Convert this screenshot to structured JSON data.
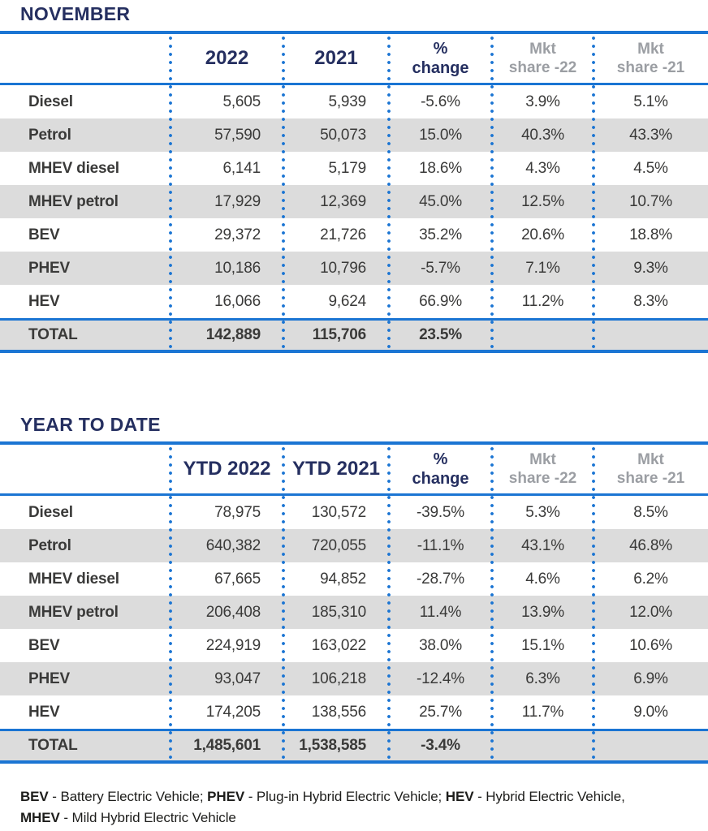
{
  "colors": {
    "navy": "#252F60",
    "rule_blue": "#1B75D3",
    "stripe_gray": "#DCDCDC",
    "body_text": "#3A3A39",
    "muted_header": "#9B9EA3"
  },
  "tables": [
    {
      "title": "NOVEMBER",
      "headers": [
        [
          ""
        ],
        [
          "2022"
        ],
        [
          "2021"
        ],
        [
          "%",
          "change"
        ],
        [
          "Mkt",
          "share -22"
        ],
        [
          "Mkt",
          "share -21"
        ]
      ],
      "rows": [
        [
          "Diesel",
          "5,605",
          "5,939",
          "-5.6%",
          "3.9%",
          "5.1%"
        ],
        [
          "Petrol",
          "57,590",
          "50,073",
          "15.0%",
          "40.3%",
          "43.3%"
        ],
        [
          "MHEV diesel",
          "6,141",
          "5,179",
          "18.6%",
          "4.3%",
          "4.5%"
        ],
        [
          "MHEV petrol",
          "17,929",
          "12,369",
          "45.0%",
          "12.5%",
          "10.7%"
        ],
        [
          "BEV",
          "29,372",
          "21,726",
          "35.2%",
          "20.6%",
          "18.8%"
        ],
        [
          "PHEV",
          "10,186",
          "10,796",
          "-5.7%",
          "7.1%",
          "9.3%"
        ],
        [
          "HEV",
          "16,066",
          "9,624",
          "66.9%",
          "11.2%",
          "8.3%"
        ]
      ],
      "total": [
        "TOTAL",
        "142,889",
        "115,706",
        "23.5%",
        "",
        ""
      ]
    },
    {
      "title": "YEAR TO DATE",
      "headers": [
        [
          ""
        ],
        [
          "YTD 2022"
        ],
        [
          "YTD 2021"
        ],
        [
          "%",
          "change"
        ],
        [
          "Mkt",
          "share -22"
        ],
        [
          "Mkt",
          "share -21"
        ]
      ],
      "rows": [
        [
          "Diesel",
          "78,975",
          "130,572",
          "-39.5%",
          "5.3%",
          "8.5%"
        ],
        [
          "Petrol",
          "640,382",
          "720,055",
          "-11.1%",
          "43.1%",
          "46.8%"
        ],
        [
          "MHEV diesel",
          "67,665",
          "94,852",
          "-28.7%",
          "4.6%",
          "6.2%"
        ],
        [
          "MHEV petrol",
          "206,408",
          "185,310",
          "11.4%",
          "13.9%",
          "12.0%"
        ],
        [
          "BEV",
          "224,919",
          "163,022",
          "38.0%",
          "15.1%",
          "10.6%"
        ],
        [
          "PHEV",
          "93,047",
          "106,218",
          "-12.4%",
          "6.3%",
          "6.9%"
        ],
        [
          "HEV",
          "174,205",
          "138,556",
          "25.7%",
          "11.7%",
          "9.0%"
        ]
      ],
      "total": [
        "TOTAL",
        "1,485,601",
        "1,538,585",
        "-3.4%",
        "",
        ""
      ]
    }
  ],
  "footnote": {
    "line1": [
      [
        "BEV",
        true
      ],
      [
        " - Battery Electric Vehicle; ",
        false
      ],
      [
        "PHEV",
        true
      ],
      [
        " - Plug-in Hybrid Electric Vehicle; ",
        false
      ],
      [
        "HEV",
        true
      ],
      [
        " - Hybrid Electric Vehicle,",
        false
      ]
    ],
    "line2": [
      [
        "MHEV",
        true
      ],
      [
        " - Mild Hybrid Electric Vehicle",
        false
      ]
    ]
  }
}
